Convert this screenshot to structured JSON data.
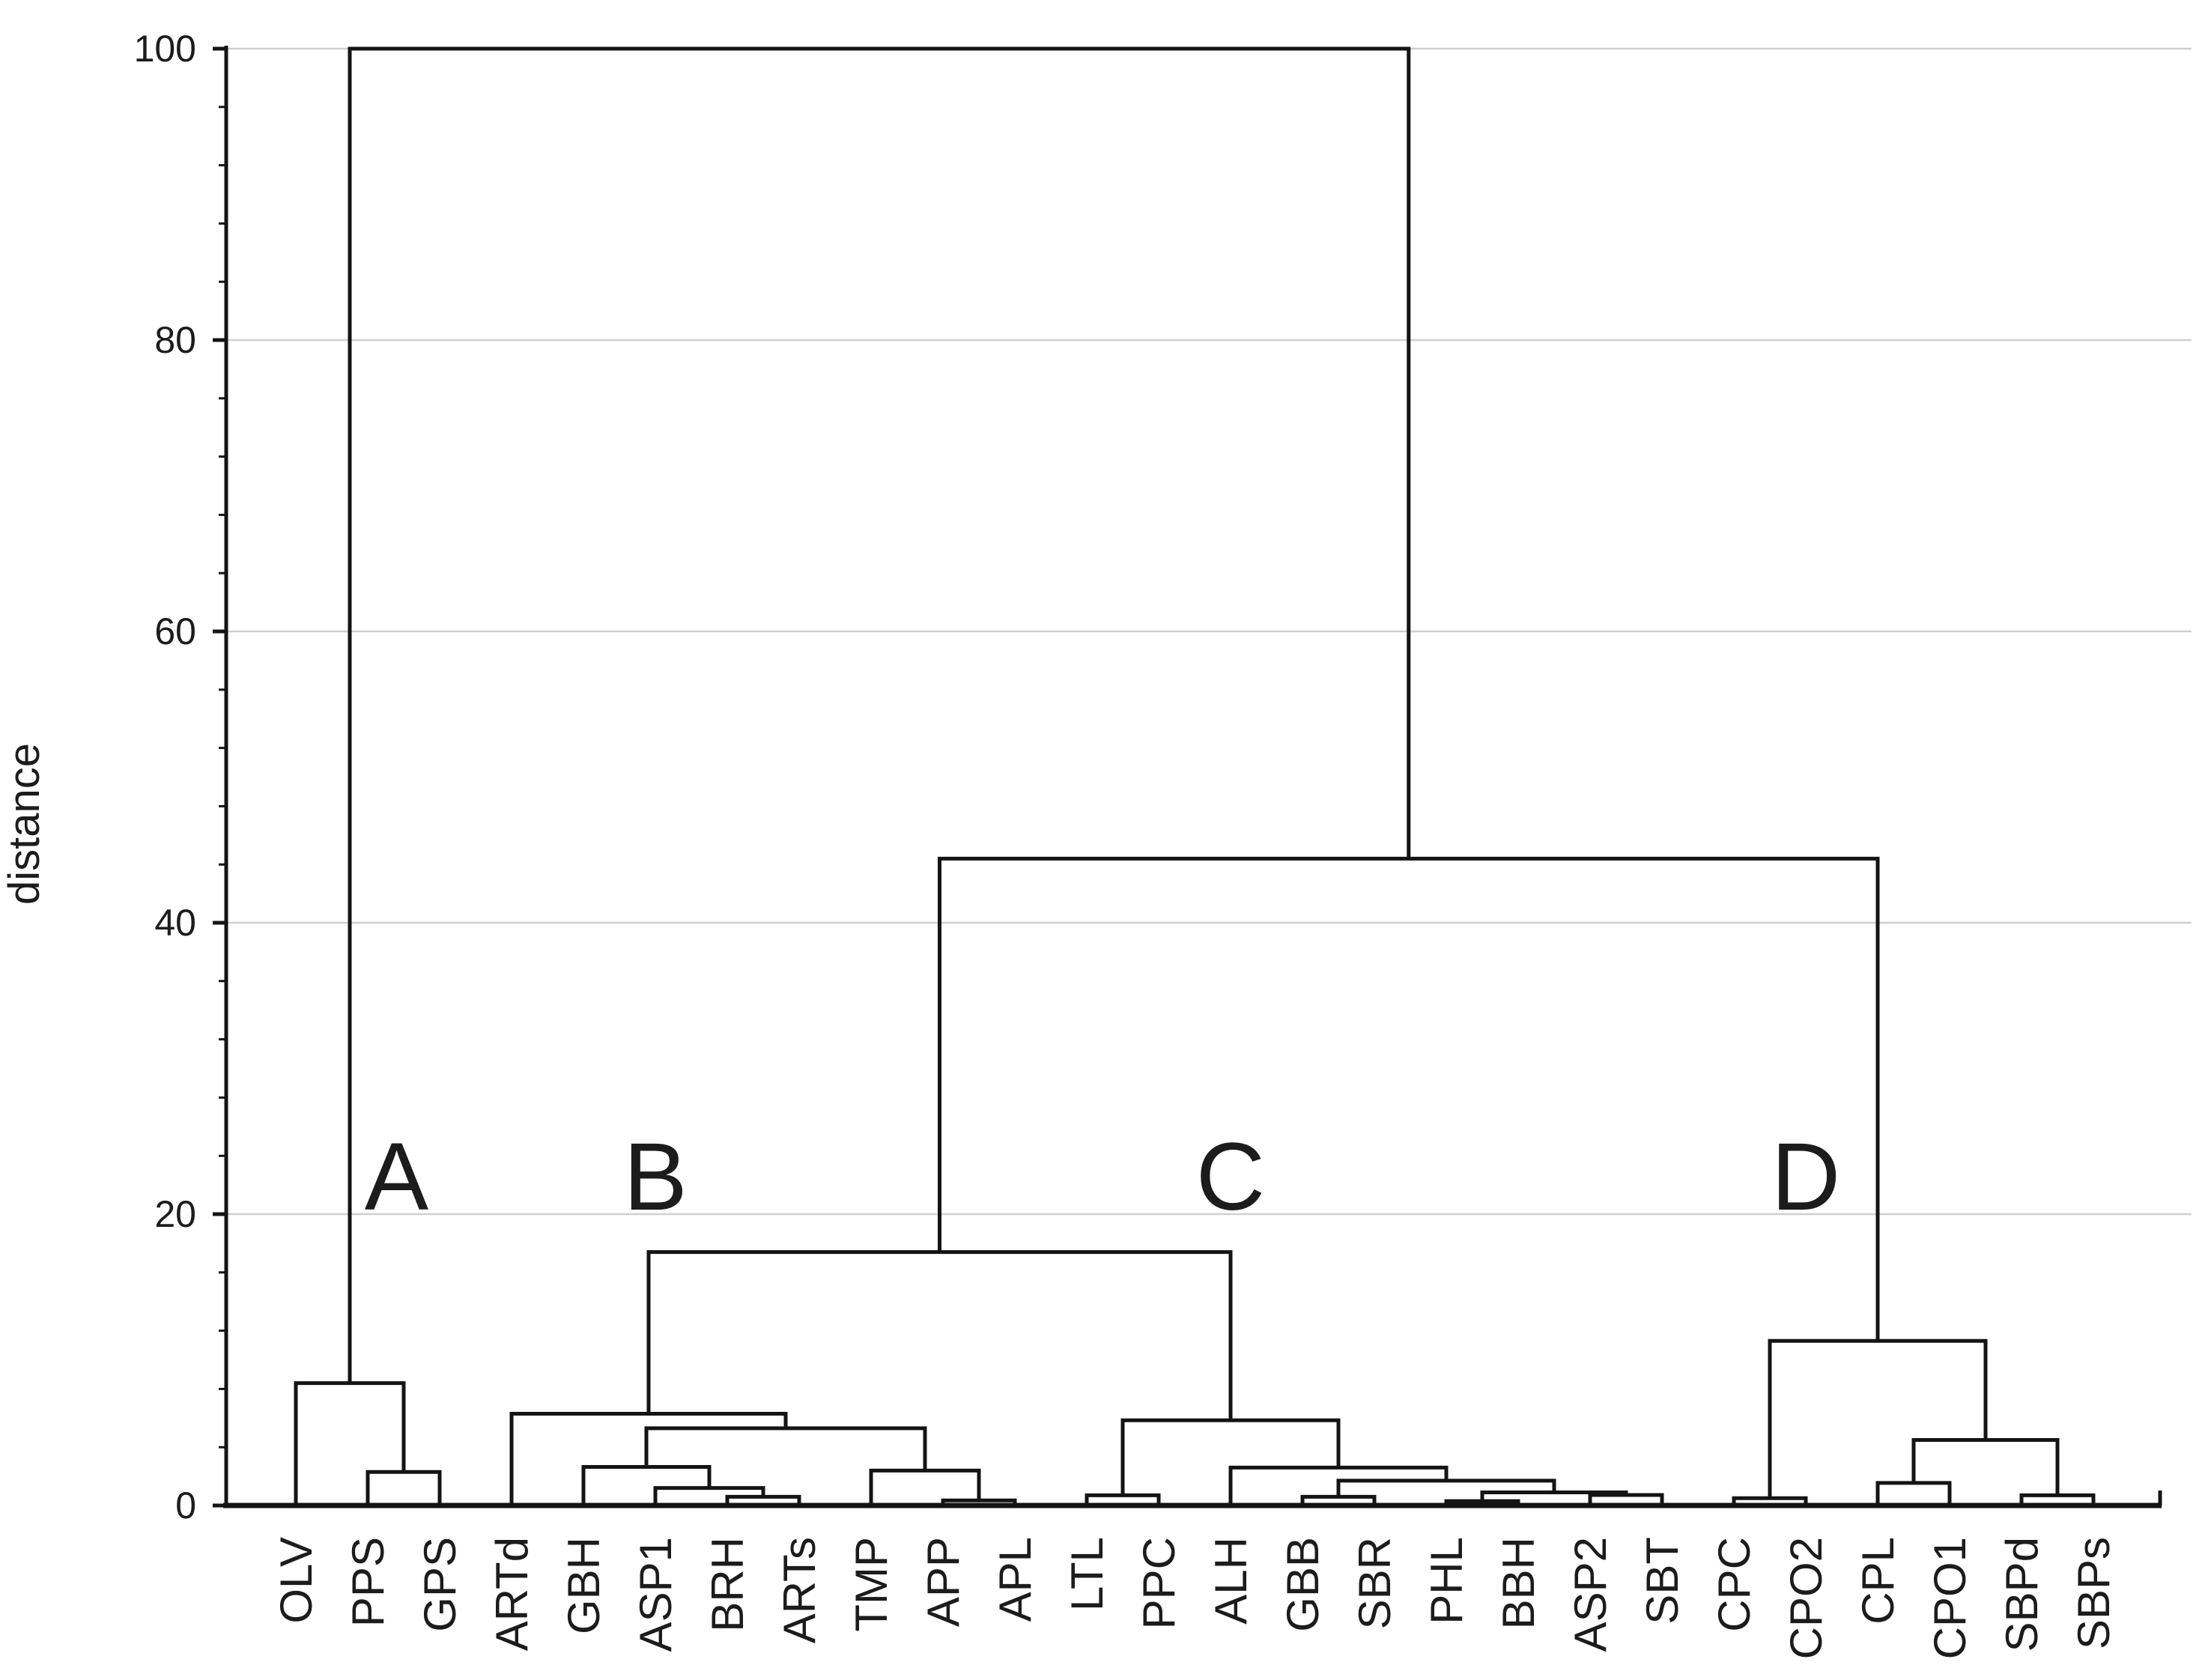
{
  "page": {
    "background": "#ffffff"
  },
  "chart_data": {
    "type": "dendrogram",
    "title": "",
    "ylabel": "distance",
    "ylim": [
      0,
      100
    ],
    "yticks": [
      0,
      20,
      40,
      60,
      80,
      100
    ],
    "minor_tick_step": 4,
    "gridline_values": [
      20,
      40,
      60,
      80,
      100
    ],
    "grid": true,
    "legend_position": "none",
    "colors": {
      "line": "#141414",
      "grid": "#cfcfcf",
      "text": "#1c1c1c"
    },
    "leaves": [
      "OLV",
      "PPS",
      "GPS",
      "ARTd",
      "GBH",
      "ASP1",
      "BRH",
      "ARTs",
      "TMP",
      "APP",
      "APL",
      "LTL",
      "PPC",
      "ALH",
      "GBB",
      "SBR",
      "PHL",
      "BBH",
      "ASP2",
      "SBT",
      "CPC",
      "CPO2",
      "CPL",
      "CPO1",
      "SBPd",
      "SBPs"
    ],
    "tree": {
      "height": 100,
      "children": [
        {
          "height": 8.4,
          "children": [
            "OLV",
            {
              "height": 2.3,
              "children": [
                "PPS",
                "GPS"
              ]
            }
          ]
        },
        {
          "height": 44.4,
          "children": [
            {
              "height": 17.4,
              "children": [
                {
                  "height": 6.3,
                  "children": [
                    "ARTd",
                    {
                      "height": 5.3,
                      "children": [
                        {
                          "height": 2.65,
                          "children": [
                            "GBH",
                            {
                              "height": 1.2,
                              "children": [
                                "ASP1",
                                {
                                  "height": 0.6,
                                  "children": [
                                    "BRH",
                                    "ARTs"
                                  ]
                                }
                              ]
                            }
                          ]
                        },
                        {
                          "height": 2.4,
                          "children": [
                            "TMP",
                            {
                              "height": 0.35,
                              "children": [
                                "APP",
                                "APL"
                              ]
                            }
                          ]
                        }
                      ]
                    }
                  ]
                },
                {
                  "height": 5.85,
                  "children": [
                    {
                      "height": 0.7,
                      "children": [
                        "LTL",
                        "PPC"
                      ]
                    },
                    {
                      "height": 2.6,
                      "children": [
                        "ALH",
                        {
                          "height": 1.7,
                          "children": [
                            {
                              "height": 0.6,
                              "children": [
                                "GBB",
                                "SBR"
                              ]
                            },
                            {
                              "height": 0.9,
                              "children": [
                                {
                                  "height": 0.3,
                                  "children": [
                                    "PHL",
                                    "BBH"
                                  ]
                                },
                                {
                                  "height": 0.72,
                                  "children": [
                                    "ASP2",
                                    "SBT"
                                  ]
                                }
                              ]
                            }
                          ]
                        }
                      ]
                    }
                  ]
                }
              ]
            },
            {
              "height": 11.3,
              "children": [
                {
                  "height": 0.5,
                  "children": [
                    "CPC",
                    "CPO2"
                  ]
                },
                {
                  "height": 4.5,
                  "children": [
                    {
                      "height": 1.55,
                      "children": [
                        "CPL",
                        "CPO1"
                      ]
                    },
                    {
                      "height": 0.7,
                      "children": [
                        "SBPd",
                        "SBPs"
                      ]
                    }
                  ]
                }
              ]
            }
          ]
        }
      ]
    },
    "cluster_labels": [
      {
        "text": "A",
        "leaf_x": 1.4,
        "distance": 20.3
      },
      {
        "text": "B",
        "leaf_x": 5.0,
        "distance": 20.3
      },
      {
        "text": "C",
        "leaf_x": 13.0,
        "distance": 20.3
      },
      {
        "text": "D",
        "leaf_x": 21.0,
        "distance": 20.3
      }
    ]
  }
}
